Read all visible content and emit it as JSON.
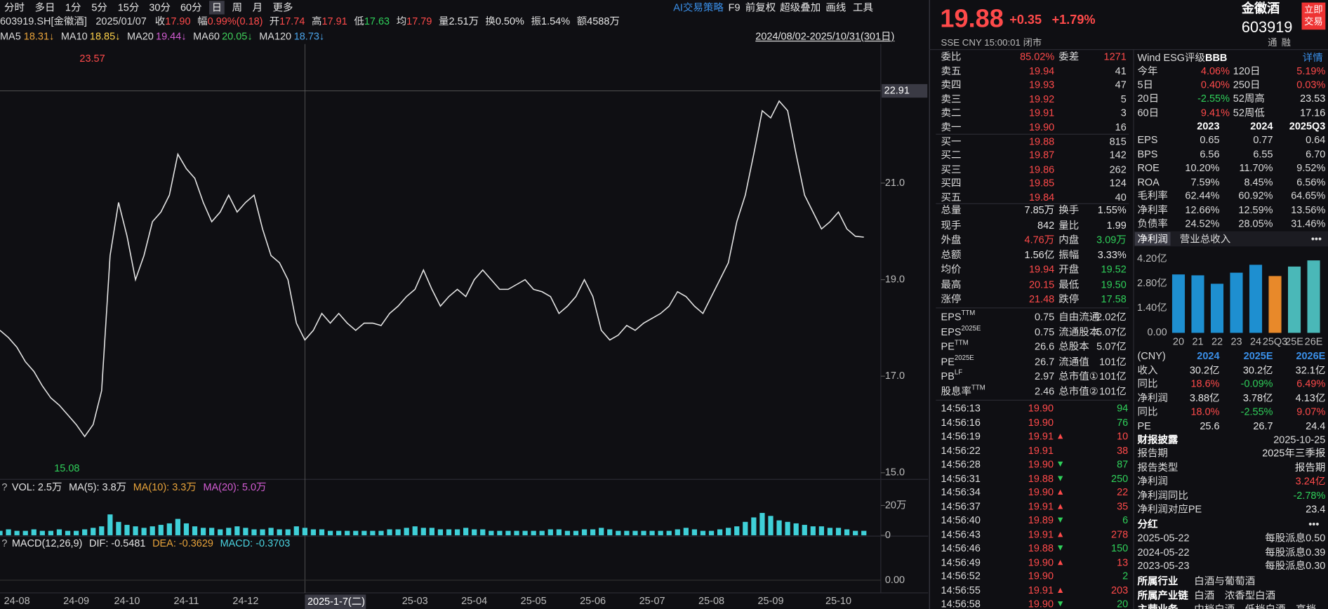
{
  "toolbar": {
    "periods": [
      "分时",
      "多日",
      "1分",
      "5分",
      "15分",
      "30分",
      "60分",
      "日",
      "周",
      "月",
      "更多"
    ],
    "active": 7,
    "tools": [
      "AI交易策略",
      "F9",
      "前复权",
      "超级叠加",
      "画线",
      "工具"
    ]
  },
  "info_bar": [
    {
      "text": "603919.SH[金徽酒]"
    },
    {
      "text": "2025/01/07"
    },
    {
      "label": "收",
      "value": "17.90",
      "tone": "up"
    },
    {
      "label": "幅",
      "value": "0.99%(0.18)",
      "tone": "up"
    },
    {
      "label": "开",
      "value": "17.74",
      "tone": "up"
    },
    {
      "label": "高",
      "value": "17.91",
      "tone": "up"
    },
    {
      "label": "低",
      "value": "17.63",
      "tone": "down"
    },
    {
      "label": "均",
      "value": "17.79",
      "tone": "up"
    },
    {
      "label": "量",
      "value": "2.51万",
      "tone": "flat"
    },
    {
      "label": "换",
      "value": "0.50%",
      "tone": "flat"
    },
    {
      "label": "振",
      "value": "1.54%",
      "tone": "flat"
    },
    {
      "label": "额",
      "value": "4588万",
      "tone": "flat"
    }
  ],
  "ma_bar": [
    {
      "label": "MA5",
      "value": "18.31↓",
      "color": "#e8a33a"
    },
    {
      "label": "MA10",
      "value": "18.85↓",
      "color": "#ffd24a"
    },
    {
      "label": "MA20",
      "value": "19.44↓",
      "color": "#d35cd3"
    },
    {
      "label": "MA60",
      "value": "20.05↓",
      "color": "#3fcf5a"
    },
    {
      "label": "MA120",
      "value": "18.73↓",
      "color": "#4aa3e8"
    }
  ],
  "range_label": "2024/08/02-2025/10/31(301日)",
  "chart_data": {
    "type": "line",
    "color": "#e6e6e6",
    "grid": false,
    "values": [
      17.95,
      17.8,
      17.6,
      17.3,
      17.1,
      16.8,
      16.55,
      16.4,
      16.2,
      16.0,
      15.75,
      16.0,
      16.7,
      19.5,
      20.6,
      19.9,
      19.0,
      19.5,
      20.2,
      20.4,
      20.75,
      21.6,
      21.3,
      21.1,
      20.6,
      20.2,
      20.4,
      20.75,
      20.4,
      20.6,
      20.75,
      20.05,
      19.5,
      19.35,
      19.0,
      18.1,
      17.75,
      17.95,
      18.3,
      18.1,
      18.3,
      18.1,
      17.95,
      18.1,
      18.1,
      18.05,
      18.3,
      18.45,
      18.65,
      18.8,
      19.2,
      18.8,
      18.45,
      18.65,
      18.8,
      18.65,
      19.0,
      19.2,
      19.0,
      18.8,
      18.8,
      18.9,
      19.0,
      18.8,
      18.75,
      18.65,
      18.3,
      18.45,
      18.65,
      19.0,
      18.65,
      17.95,
      17.75,
      17.85,
      18.05,
      17.95,
      18.1,
      18.2,
      18.3,
      18.45,
      18.75,
      18.65,
      18.45,
      18.3,
      18.65,
      19.0,
      19.35,
      20.2,
      20.75,
      21.6,
      22.5,
      22.35,
      22.7,
      22.5,
      21.6,
      20.75,
      20.4,
      20.05,
      20.2,
      20.4,
      20.05,
      19.9,
      19.88
    ],
    "ylim": [
      14.88,
      23.88
    ],
    "yticks": [
      {
        "value": 15,
        "label": "15.0"
      },
      {
        "value": 17,
        "label": "17.0"
      },
      {
        "value": 19,
        "label": "19.0"
      },
      {
        "value": 21,
        "label": "21.0"
      }
    ],
    "xlim": [
      0,
      104
    ],
    "xticks": [
      {
        "value": 2,
        "label": "24-08"
      },
      {
        "value": 9,
        "label": "24-09"
      },
      {
        "value": 15,
        "label": "24-10"
      },
      {
        "value": 22,
        "label": "24-11"
      },
      {
        "value": 29,
        "label": "24-12"
      },
      {
        "value": 49,
        "label": "25-03"
      },
      {
        "value": 56,
        "label": "25-04"
      },
      {
        "value": 63,
        "label": "25-05"
      },
      {
        "value": 70,
        "label": "25-06"
      },
      {
        "value": 77,
        "label": "25-07"
      },
      {
        "value": 84,
        "label": "25-08"
      },
      {
        "value": 91,
        "label": "25-09"
      },
      {
        "value": 99,
        "label": "25-10"
      }
    ],
    "high": {
      "value": 23.57,
      "label": "23.57"
    },
    "low": {
      "value": 15.08,
      "label": "15.08"
    },
    "crosshair": {
      "y": {
        "value": 22.91,
        "label": "22.91"
      },
      "x": {
        "value": 36,
        "label": "2025-1-7(二)"
      }
    }
  },
  "volume": {
    "header": [
      {
        "text": "VOL: 2.5万",
        "color": "#e6e6e6"
      },
      {
        "text": "MA(5): 3.8万",
        "color": "#e6e6e6"
      },
      {
        "text": "MA(10): 3.3万",
        "color": "#e8a33a"
      },
      {
        "text": "MA(20): 5.0万",
        "color": "#d35cd3"
      }
    ],
    "color": "#3fd0d8",
    "values": [
      3,
      4,
      3,
      3,
      4,
      3,
      3,
      4,
      3,
      3,
      4,
      5,
      6,
      14,
      9,
      7,
      6,
      5,
      6,
      7,
      8,
      11,
      8,
      6,
      5,
      5,
      4,
      5,
      6,
      5,
      4,
      4,
      5,
      4,
      4,
      6,
      5,
      4,
      4,
      3,
      3,
      3,
      3,
      3,
      3,
      3,
      4,
      4,
      5,
      6,
      5,
      5,
      4,
      4,
      4,
      5,
      4,
      4,
      3,
      3,
      3,
      3,
      3,
      3,
      3,
      4,
      4,
      3,
      3,
      4,
      4,
      5,
      4,
      3,
      3,
      3,
      3,
      3,
      3,
      3,
      4,
      5,
      4,
      3,
      3,
      4,
      5,
      6,
      9,
      12,
      15,
      13,
      10,
      9,
      8,
      7,
      6,
      6,
      5,
      5,
      4,
      3,
      3
    ],
    "ylim": [
      0,
      26.7
    ],
    "yticks": [
      {
        "value": 20,
        "label": "20万"
      },
      0
    ]
  },
  "macd": {
    "header": [
      {
        "text": "MACD(12,26,9)",
        "color": "#e6e6e6"
      },
      {
        "text": "DIF: -0.5481",
        "color": "#e6e6e6"
      },
      {
        "text": "DEA: -0.3629",
        "color": "#e8a33a"
      },
      {
        "text": "MACD: -0.3703",
        "color": "#4ad3e0"
      }
    ],
    "yticks": [
      {
        "value": 0,
        "label": "0.00"
      }
    ]
  },
  "quote": {
    "price": "19.88",
    "change": "+0.35",
    "pct": "+1.79%",
    "name": "金徽酒",
    "code": "603919",
    "status": "SSE  CNY  15:00:01  闭市",
    "trade_button": "立即交易",
    "tags": [
      "通",
      "融"
    ]
  },
  "order_book": {
    "ratio": {
      "label": "委比",
      "value": "85.02%",
      "label2": "委差",
      "value2": "1271"
    },
    "asks": [
      [
        "卖五",
        "19.94",
        "41"
      ],
      [
        "卖四",
        "19.93",
        "47"
      ],
      [
        "卖三",
        "19.92",
        "5"
      ],
      [
        "卖二",
        "19.91",
        "3"
      ],
      [
        "卖一",
        "19.90",
        "16"
      ]
    ],
    "bids": [
      [
        "买一",
        "19.88",
        "815"
      ],
      [
        "买二",
        "19.87",
        "142"
      ],
      [
        "买三",
        "19.86",
        "262"
      ],
      [
        "买四",
        "19.85",
        "124"
      ],
      [
        "买五",
        "19.84",
        "40"
      ]
    ]
  },
  "stats": [
    {
      "cells": [
        "总量",
        "7.85万",
        "换手",
        "1.55%"
      ],
      "tones": [
        "flat",
        "flat"
      ]
    },
    {
      "cells": [
        "现手",
        "842",
        "量比",
        "1.99"
      ],
      "tones": [
        "flat",
        "flat"
      ]
    },
    {
      "cells": [
        "外盘",
        "4.76万",
        "内盘",
        "3.09万"
      ],
      "tones": [
        "up",
        "down"
      ]
    },
    {
      "cells": [
        "总额",
        "1.56亿",
        "振幅",
        "3.33%"
      ],
      "tones": [
        "flat",
        "flat"
      ]
    },
    {
      "cells": [
        "均价",
        "19.94",
        "开盘",
        "19.52"
      ],
      "tones": [
        "up",
        "down"
      ]
    },
    {
      "cells": [
        "最高",
        "20.15",
        "最低",
        "19.50"
      ],
      "tones": [
        "up",
        "down"
      ]
    },
    {
      "cells": [
        "涨停",
        "21.48",
        "跌停",
        "17.58"
      ],
      "tones": [
        "up",
        "down"
      ]
    }
  ],
  "valuation": [
    {
      "label": "EPS",
      "sup": "TTM",
      "value": "0.75",
      "label2": "自由流通",
      "value2": "2.02亿"
    },
    {
      "label": "EPS",
      "sup": "2025E",
      "value": "0.75",
      "label2": "流通股本",
      "value2": "5.07亿"
    },
    {
      "label": "PE",
      "sup": "TTM",
      "value": "26.6",
      "label2": "总股本",
      "value2": "5.07亿"
    },
    {
      "label": "PE",
      "sup": "2025E",
      "value": "26.7",
      "label2": "流通值",
      "value2": "101亿"
    },
    {
      "label": "PB",
      "sup": "LF",
      "value": "2.97",
      "label2": "总市值①",
      "value2": "101亿"
    },
    {
      "label": "股息率",
      "sup": "TTM",
      "value": "2.46",
      "label2": "总市值②",
      "value2": "101亿"
    }
  ],
  "trades": [
    {
      "time": "14:56:13",
      "price": "19.90",
      "dir": "none",
      "vol": "94",
      "tone": "down"
    },
    {
      "time": "14:56:16",
      "price": "19.90",
      "dir": "none",
      "vol": "76",
      "tone": "down"
    },
    {
      "time": "14:56:19",
      "price": "19.91",
      "dir": "up",
      "vol": "10",
      "tone": "up"
    },
    {
      "time": "14:56:22",
      "price": "19.91",
      "dir": "none",
      "vol": "38",
      "tone": "up"
    },
    {
      "time": "14:56:28",
      "price": "19.90",
      "dir": "down",
      "vol": "87",
      "tone": "down"
    },
    {
      "time": "14:56:31",
      "price": "19.88",
      "dir": "down",
      "vol": "250",
      "tone": "down"
    },
    {
      "time": "14:56:34",
      "price": "19.90",
      "dir": "up",
      "vol": "22",
      "tone": "up"
    },
    {
      "time": "14:56:37",
      "price": "19.91",
      "dir": "up",
      "vol": "35",
      "tone": "up"
    },
    {
      "time": "14:56:40",
      "price": "19.89",
      "dir": "down",
      "vol": "6",
      "tone": "down"
    },
    {
      "time": "14:56:43",
      "price": "19.91",
      "dir": "up",
      "vol": "278",
      "tone": "up"
    },
    {
      "time": "14:56:46",
      "price": "19.88",
      "dir": "down",
      "vol": "150",
      "tone": "down"
    },
    {
      "time": "14:56:49",
      "price": "19.90",
      "dir": "up",
      "vol": "13",
      "tone": "up"
    },
    {
      "time": "14:56:52",
      "price": "19.90",
      "dir": "none",
      "vol": "2",
      "tone": "down"
    },
    {
      "time": "14:56:55",
      "price": "19.91",
      "dir": "up",
      "vol": "203",
      "tone": "up"
    },
    {
      "time": "14:56:58",
      "price": "19.90",
      "dir": "down",
      "vol": "20",
      "tone": "down"
    }
  ],
  "esg": {
    "label": "Wind ESG评级",
    "rating": "BBB",
    "link": "详情"
  },
  "returns": [
    {
      "cells": [
        "今年",
        "4.06%",
        "120日",
        "5.19%"
      ],
      "tones": [
        "up",
        "up"
      ]
    },
    {
      "cells": [
        "5日",
        "0.40%",
        "250日",
        "0.03%"
      ],
      "tones": [
        "up",
        "up"
      ]
    },
    {
      "cells": [
        "20日",
        "-2.55%",
        "52周高",
        "23.53"
      ],
      "tones": [
        "down",
        "flat"
      ]
    },
    {
      "cells": [
        "60日",
        "9.41%",
        "52周低",
        "17.16"
      ],
      "tones": [
        "up",
        "flat"
      ]
    }
  ],
  "financials": {
    "header": [
      "2023",
      "2024",
      "2025Q3"
    ],
    "rows": [
      [
        "EPS",
        "0.65",
        "0.77",
        "0.64"
      ],
      [
        "BPS",
        "6.56",
        "6.55",
        "6.70"
      ],
      [
        "ROE",
        "10.20%",
        "11.70%",
        "9.52%"
      ],
      [
        "ROA",
        "7.59%",
        "8.45%",
        "6.56%"
      ],
      [
        "毛利率",
        "62.44%",
        "60.92%",
        "64.65%"
      ],
      [
        "净利率",
        "12.66%",
        "12.59%",
        "13.56%"
      ],
      [
        "负债率",
        "24.52%",
        "28.05%",
        "31.46%"
      ]
    ]
  },
  "profit_tabs": [
    "净利润",
    "营业总收入",
    "•••"
  ],
  "profit_chart": {
    "type": "bar",
    "categories": [
      "20",
      "21",
      "22",
      "23",
      "24",
      "25Q3",
      "25E",
      "26E"
    ],
    "values": [
      3.33,
      3.28,
      2.8,
      3.43,
      3.88,
      3.24,
      3.78,
      4.13
    ],
    "colors": [
      "#1e8fd0",
      "#1e8fd0",
      "#1e8fd0",
      "#1e8fd0",
      "#1e8fd0",
      "#e8892a",
      "#4ab8b8",
      "#4ab8b8"
    ],
    "ylim": [
      0,
      4.2
    ],
    "yticks": [
      {
        "value": 0,
        "label": "0.00"
      },
      {
        "value": 1.4,
        "label": "1.40亿"
      },
      {
        "value": 2.8,
        "label": "2.80亿"
      },
      {
        "value": 4.2,
        "label": "4.20亿"
      }
    ]
  },
  "forecast": {
    "header": [
      "(CNY)",
      "2024",
      "2025E",
      "2026E"
    ],
    "rows": [
      {
        "cells": [
          "收入",
          "30.2亿",
          "30.2亿",
          "32.1亿"
        ],
        "tones": [
          "flat",
          "flat",
          "flat"
        ]
      },
      {
        "cells": [
          "同比",
          "18.6%",
          "-0.09%",
          "6.49%"
        ],
        "tones": [
          "up",
          "down",
          "up"
        ]
      },
      {
        "cells": [
          "净利润",
          "3.88亿",
          "3.78亿",
          "4.13亿"
        ],
        "tones": [
          "flat",
          "flat",
          "flat"
        ]
      },
      {
        "cells": [
          "同比",
          "18.0%",
          "-2.55%",
          "9.07%"
        ],
        "tones": [
          "up",
          "down",
          "up"
        ]
      },
      {
        "cells": [
          "PE",
          "25.6",
          "26.7",
          "24.4"
        ],
        "tones": [
          "flat",
          "flat",
          "flat"
        ]
      }
    ]
  },
  "report": {
    "title": "财报披露",
    "date": "2025-10-25",
    "rows": [
      {
        "cells": [
          "报告期",
          "2025年三季报"
        ],
        "tone": "flat"
      },
      {
        "cells": [
          "报告类型",
          "报告期"
        ],
        "tone": "flat"
      },
      {
        "cells": [
          "净利润",
          "3.24亿"
        ],
        "tone": "up"
      },
      {
        "cells": [
          "净利润同比",
          "-2.78%"
        ],
        "tone": "down"
      },
      {
        "cells": [
          "净利润对应PE",
          "23.4"
        ],
        "tone": "flat"
      }
    ]
  },
  "dividend": {
    "title": "分红",
    "more": "•••",
    "rows": [
      [
        "2025-05-22",
        "每股派息0.50"
      ],
      [
        "2024-05-22",
        "每股派息0.39"
      ],
      [
        "2023-05-23",
        "每股派息0.30"
      ]
    ]
  },
  "industry": [
    [
      "所属行业",
      "白酒与葡萄酒"
    ],
    [
      "所属产业链",
      "白酒　浓香型白酒"
    ],
    [
      "主营业务",
      "中档白酒　低档白酒　高档"
    ]
  ]
}
